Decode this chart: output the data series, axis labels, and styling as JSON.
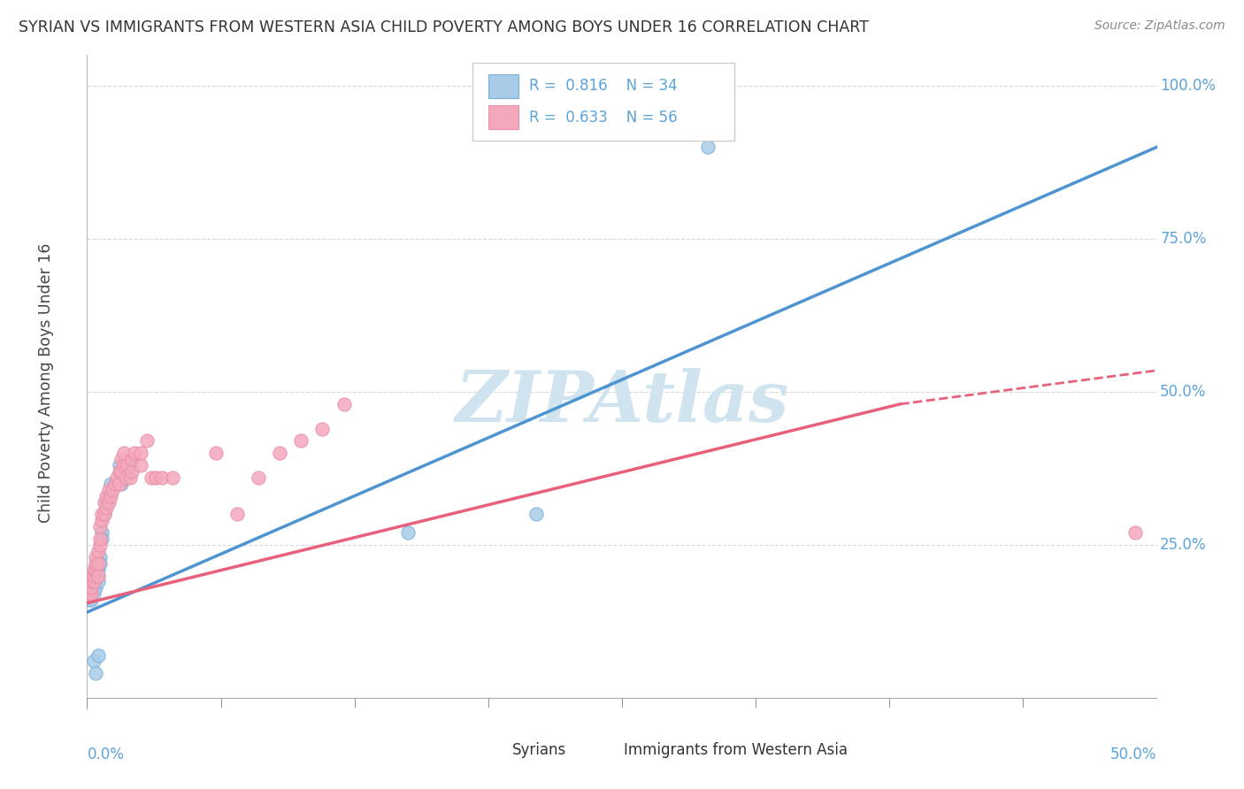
{
  "title": "SYRIAN VS IMMIGRANTS FROM WESTERN ASIA CHILD POVERTY AMONG BOYS UNDER 16 CORRELATION CHART",
  "source": "Source: ZipAtlas.com",
  "ylabel": "Child Poverty Among Boys Under 16",
  "blue_color": "#4d94d0",
  "pink_color": "#e8607a",
  "blue_scatter_color": "#a8cce8",
  "pink_scatter_color": "#f4a8bc",
  "blue_scatter_edge": "#7ab0d8",
  "pink_scatter_edge": "#e890a8",
  "watermark_color": "#d0e4f0",
  "background_color": "#ffffff",
  "grid_color": "#d8d8d8",
  "title_color": "#333333",
  "axis_label_color": "#5ba3d9",
  "right_label_color": "#5ba3d9",
  "blue_points": [
    [
      0.001,
      0.16
    ],
    [
      0.001,
      0.17
    ],
    [
      0.002,
      0.17
    ],
    [
      0.002,
      0.18
    ],
    [
      0.002,
      0.16
    ],
    [
      0.003,
      0.19
    ],
    [
      0.003,
      0.18
    ],
    [
      0.003,
      0.17
    ],
    [
      0.004,
      0.2
    ],
    [
      0.004,
      0.19
    ],
    [
      0.004,
      0.18
    ],
    [
      0.005,
      0.21
    ],
    [
      0.005,
      0.2
    ],
    [
      0.005,
      0.19
    ],
    [
      0.006,
      0.23
    ],
    [
      0.006,
      0.22
    ],
    [
      0.007,
      0.27
    ],
    [
      0.007,
      0.26
    ],
    [
      0.008,
      0.3
    ],
    [
      0.009,
      0.32
    ],
    [
      0.01,
      0.33
    ],
    [
      0.011,
      0.35
    ],
    [
      0.013,
      0.35
    ],
    [
      0.015,
      0.38
    ],
    [
      0.016,
      0.35
    ],
    [
      0.017,
      0.38
    ],
    [
      0.018,
      0.36
    ],
    [
      0.02,
      0.38
    ],
    [
      0.003,
      0.06
    ],
    [
      0.004,
      0.04
    ],
    [
      0.005,
      0.07
    ],
    [
      0.15,
      0.27
    ],
    [
      0.21,
      0.3
    ],
    [
      0.29,
      0.9
    ]
  ],
  "pink_points": [
    [
      0.001,
      0.17
    ],
    [
      0.001,
      0.18
    ],
    [
      0.002,
      0.17
    ],
    [
      0.002,
      0.18
    ],
    [
      0.002,
      0.19
    ],
    [
      0.003,
      0.19
    ],
    [
      0.003,
      0.2
    ],
    [
      0.003,
      0.21
    ],
    [
      0.004,
      0.21
    ],
    [
      0.004,
      0.22
    ],
    [
      0.004,
      0.23
    ],
    [
      0.005,
      0.2
    ],
    [
      0.005,
      0.22
    ],
    [
      0.005,
      0.24
    ],
    [
      0.006,
      0.25
    ],
    [
      0.006,
      0.26
    ],
    [
      0.006,
      0.28
    ],
    [
      0.007,
      0.29
    ],
    [
      0.007,
      0.3
    ],
    [
      0.008,
      0.3
    ],
    [
      0.008,
      0.32
    ],
    [
      0.009,
      0.31
    ],
    [
      0.009,
      0.33
    ],
    [
      0.01,
      0.32
    ],
    [
      0.01,
      0.34
    ],
    [
      0.011,
      0.33
    ],
    [
      0.012,
      0.34
    ],
    [
      0.013,
      0.35
    ],
    [
      0.014,
      0.36
    ],
    [
      0.015,
      0.35
    ],
    [
      0.015,
      0.37
    ],
    [
      0.016,
      0.37
    ],
    [
      0.016,
      0.39
    ],
    [
      0.017,
      0.38
    ],
    [
      0.017,
      0.4
    ],
    [
      0.018,
      0.36
    ],
    [
      0.019,
      0.38
    ],
    [
      0.02,
      0.36
    ],
    [
      0.021,
      0.37
    ],
    [
      0.021,
      0.39
    ],
    [
      0.022,
      0.4
    ],
    [
      0.025,
      0.38
    ],
    [
      0.025,
      0.4
    ],
    [
      0.028,
      0.42
    ],
    [
      0.03,
      0.36
    ],
    [
      0.032,
      0.36
    ],
    [
      0.035,
      0.36
    ],
    [
      0.04,
      0.36
    ],
    [
      0.06,
      0.4
    ],
    [
      0.07,
      0.3
    ],
    [
      0.08,
      0.36
    ],
    [
      0.09,
      0.4
    ],
    [
      0.1,
      0.42
    ],
    [
      0.11,
      0.44
    ],
    [
      0.12,
      0.48
    ],
    [
      0.49,
      0.27
    ]
  ],
  "blue_line": [
    [
      0.0,
      0.14
    ],
    [
      0.5,
      0.9
    ]
  ],
  "pink_line_solid": [
    [
      0.0,
      0.155
    ],
    [
      0.38,
      0.48
    ]
  ],
  "pink_line_dash": [
    [
      0.38,
      0.48
    ],
    [
      0.5,
      0.535
    ]
  ],
  "xlim": [
    0.0,
    0.5
  ],
  "ylim": [
    -0.02,
    1.05
  ],
  "yticks": [
    0.25,
    0.5,
    0.75,
    1.0
  ],
  "ytick_labels": [
    "25.0%",
    "50.0%",
    "75.0%",
    "100.0%"
  ],
  "xtick_labels_left": "0.0%",
  "xtick_labels_right": "50.0%"
}
